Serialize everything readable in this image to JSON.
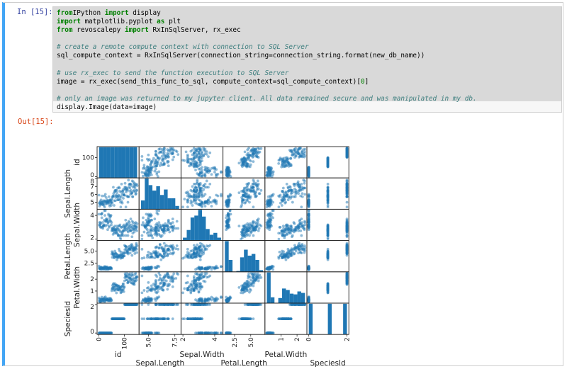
{
  "cell": {
    "in_prompt": "In [15]:",
    "out_prompt": "Out[15]:",
    "code_lines": [
      [
        [
          "kw",
          "from"
        ],
        [
          "",
          "IPython "
        ],
        [
          "kw",
          "import"
        ],
        [
          "",
          " display"
        ]
      ],
      [
        [
          "kw",
          "import"
        ],
        [
          "",
          " matplotlib.pyplot "
        ],
        [
          "kw",
          "as"
        ],
        [
          "",
          " plt"
        ]
      ],
      [
        [
          "kw",
          "from"
        ],
        [
          "",
          " revoscalepy "
        ],
        [
          "kw",
          "import"
        ],
        [
          "",
          " RxInSqlServer, rx_exec"
        ]
      ],
      [],
      [
        [
          "cm",
          "# create a remote compute context with connection to SQL Server"
        ]
      ],
      [
        [
          "",
          "sql_compute_context = RxInSqlServer(connection_string=connection_string.format(new_db_name))"
        ]
      ],
      [],
      [
        [
          "cm",
          "# use rx_exec to send the function execution to SQL Server"
        ]
      ],
      [
        [
          "",
          "image = rx_exec(send_this_func_to_sql, compute_context=sql_compute_context)["
        ],
        [
          "nu",
          "0"
        ],
        [
          "",
          "]"
        ]
      ],
      [],
      [
        [
          "cm",
          "# only an image was returned to my jupyter client. All data remained secure and was manipulated in my db."
        ]
      ],
      [
        [
          "",
          "display.Image(data=image)"
        ]
      ]
    ]
  },
  "chart_data": {
    "type": "scatter",
    "kind": "scatter_matrix",
    "color": "#1f77b4",
    "variables": [
      "id",
      "Sepal.Length",
      "Sepal.Width",
      "Petal.Length",
      "Petal.Width",
      "SpeciesId"
    ],
    "ranges": [
      [
        1,
        150
      ],
      [
        4.3,
        7.9
      ],
      [
        2.0,
        4.4
      ],
      [
        1.0,
        6.9
      ],
      [
        0.1,
        2.5
      ],
      [
        0,
        2
      ]
    ],
    "y_ticks": [
      [
        "0",
        "100"
      ],
      [
        "5",
        "6",
        "7",
        "8"
      ],
      [
        "2",
        "4"
      ],
      [
        "2.5",
        "5.0"
      ],
      [
        "1",
        "2"
      ],
      [
        "0",
        "2"
      ]
    ],
    "y_tick_values": [
      [
        0,
        100
      ],
      [
        5,
        6,
        7,
        8
      ],
      [
        2,
        4
      ],
      [
        2.5,
        5.0
      ],
      [
        1,
        2
      ],
      [
        0,
        2
      ]
    ],
    "x_ticks": [
      [
        "0",
        "100"
      ],
      [
        "5.0",
        "7.5"
      ],
      [
        "2",
        "4"
      ],
      [
        "2.5",
        "5.0"
      ],
      [
        "1",
        "2"
      ],
      [
        "0",
        "2"
      ]
    ],
    "x_tick_values": [
      [
        0,
        100
      ],
      [
        5.0,
        7.5
      ],
      [
        2,
        4
      ],
      [
        2.5,
        5.0
      ],
      [
        1,
        2
      ],
      [
        0,
        2
      ]
    ],
    "diagonal": "hist"
  }
}
